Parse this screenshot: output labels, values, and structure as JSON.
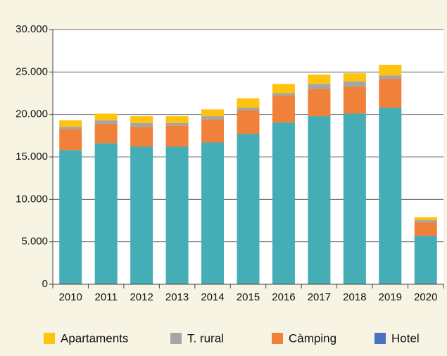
{
  "chart_data": {
    "type": "stacked_bar",
    "categories": [
      "2010",
      "2011",
      "2012",
      "2013",
      "2014",
      "2015",
      "2016",
      "2017",
      "2018",
      "2019",
      "2020"
    ],
    "series": [
      {
        "name": "Apartaments",
        "color": "#ffc20e",
        "values": [
          750,
          800,
          800,
          800,
          800,
          1100,
          1100,
          1100,
          950,
          1250,
          350
        ]
      },
      {
        "name": "T. rural",
        "color": "#a5a5a5",
        "values": [
          250,
          400,
          450,
          300,
          400,
          300,
          300,
          600,
          600,
          400,
          250
        ]
      },
      {
        "name": "Càmping",
        "color": "#f0813a",
        "values": [
          2500,
          2300,
          2350,
          2500,
          2700,
          2800,
          3150,
          3200,
          3200,
          3400,
          1600
        ]
      },
      {
        "name": "Hotel",
        "color": "#44adb6",
        "legend_color": "#4a72c4",
        "values": [
          15800,
          16600,
          16200,
          16200,
          16700,
          17700,
          19050,
          19800,
          20100,
          20800,
          5700
        ]
      }
    ],
    "ylim": [
      0,
      30000
    ],
    "yticks": [
      0,
      {
        "value": 5000,
        "label": "5.000"
      },
      {
        "value": 10000,
        "label": "10.000"
      },
      {
        "value": 15000,
        "label": "15.000"
      },
      {
        "value": 20000,
        "label": "20.000"
      },
      {
        "value": 25000,
        "label": "25.000"
      },
      {
        "value": 30000,
        "label": "30.000"
      }
    ],
    "grid": true,
    "legend": "bottom"
  }
}
